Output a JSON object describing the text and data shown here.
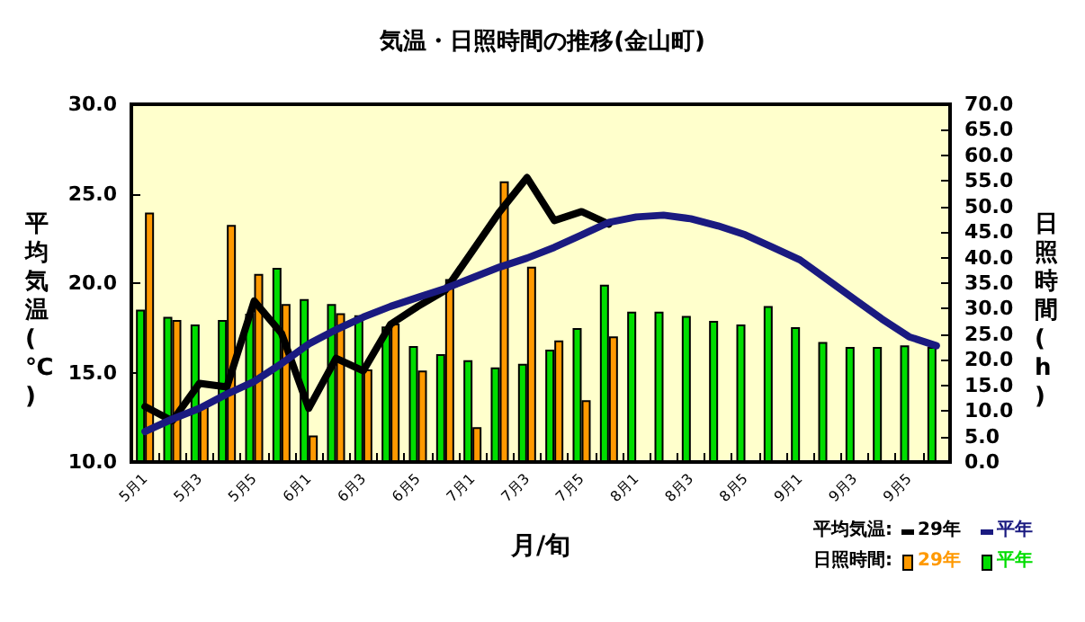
{
  "chart_data": {
    "type": "bar",
    "title": "気温・日照時間の推移(金山町)",
    "xlabel": "月/旬",
    "ylabel": "平均気温(℃)",
    "y2label": "日照時間(h)",
    "categories": [
      "5月1",
      null,
      "5月3",
      null,
      "5月5",
      null,
      "6月1",
      null,
      "6月3",
      null,
      "6月5",
      null,
      "7月1",
      null,
      "7月3",
      null,
      "7月5",
      null,
      "8月1",
      null,
      "8月3",
      null,
      "8月5",
      null,
      "9月1",
      null,
      "9月3",
      null,
      "9月5",
      null
    ],
    "series": [
      {
        "name": "29年",
        "type": "line",
        "color": "#000000",
        "values": [
          13.1,
          12.3,
          14.4,
          14.2,
          19.0,
          17.2,
          13.0,
          15.8,
          15.1,
          17.7,
          18.7,
          19.6,
          21.8,
          24.0,
          25.9,
          23.5,
          24.0,
          23.3,
          null,
          null,
          null,
          null,
          null,
          null,
          null,
          null,
          null,
          null,
          null,
          null
        ]
      },
      {
        "name": "平年",
        "type": "line",
        "color": "#1a1a80",
        "values": [
          11.7,
          12.4,
          13.0,
          13.8,
          14.5,
          15.5,
          16.6,
          17.4,
          18.1,
          18.7,
          19.2,
          19.7,
          20.3,
          20.9,
          21.4,
          22.0,
          22.7,
          23.4,
          23.7,
          23.8,
          23.6,
          23.2,
          22.7,
          22.0,
          21.3,
          20.2,
          19.1,
          18.0,
          17.0,
          16.5
        ]
      },
      {
        "name": "29年",
        "type": "bar",
        "axis": "y2",
        "color": "#ff9900",
        "values": [
          48.8,
          27.8,
          11,
          46.4,
          36.8,
          30.9,
          5.2,
          29.1,
          18.1,
          27.1,
          17.9,
          35.8,
          6.8,
          54.9,
          38.2,
          23.8,
          12.1,
          24.6,
          null,
          null,
          null,
          null,
          null,
          null,
          null,
          null,
          null,
          null,
          null,
          null
        ]
      },
      {
        "name": "平年",
        "type": "bar",
        "axis": "y2",
        "color": "#00dd00",
        "values": [
          29.8,
          28.4,
          26.9,
          27.8,
          29,
          38.0,
          31.9,
          30.9,
          28.7,
          26.5,
          22.7,
          21.1,
          19.9,
          18.5,
          19.2,
          22.0,
          26.2,
          34.7,
          29.4,
          29.4,
          28.6,
          27.6,
          26.9,
          30.5,
          26.4,
          23.5,
          22.5,
          22.5,
          22.8,
          22.5
        ]
      }
    ],
    "annotations": [
      "平均気温:",
      "日照時間:"
    ],
    "ylim": [
      10,
      30
    ],
    "yticks": [
      {
        "value": 10,
        "label": "10.0"
      },
      {
        "value": 15,
        "label": "15.0"
      },
      {
        "value": 20,
        "label": "20.0"
      },
      {
        "value": 25,
        "label": "25.0"
      },
      {
        "value": 30,
        "label": "30.0"
      }
    ],
    "y2lim": [
      0,
      70
    ],
    "y2ticks": [
      {
        "value": 0,
        "label": "0.0"
      },
      {
        "value": 5,
        "label": "5.0"
      },
      {
        "value": 10,
        "label": "10.0"
      },
      {
        "value": 15,
        "label": "15.0"
      },
      {
        "value": 20,
        "label": "20.0"
      },
      {
        "value": 25,
        "label": "25.0"
      },
      {
        "value": 30,
        "label": "30.0"
      },
      {
        "value": 35,
        "label": "35.0"
      },
      {
        "value": 40,
        "label": "40.0"
      },
      {
        "value": 45,
        "label": "45.0"
      },
      {
        "value": 50,
        "label": "50.0"
      },
      {
        "value": 55,
        "label": "55.0"
      },
      {
        "value": 60,
        "label": "60.0"
      },
      {
        "value": 65,
        "label": "65.0"
      },
      {
        "value": 70,
        "label": "70.0"
      }
    ],
    "grid": false,
    "legend": "bottom right",
    "marker": "none",
    "line_style": "solid"
  }
}
